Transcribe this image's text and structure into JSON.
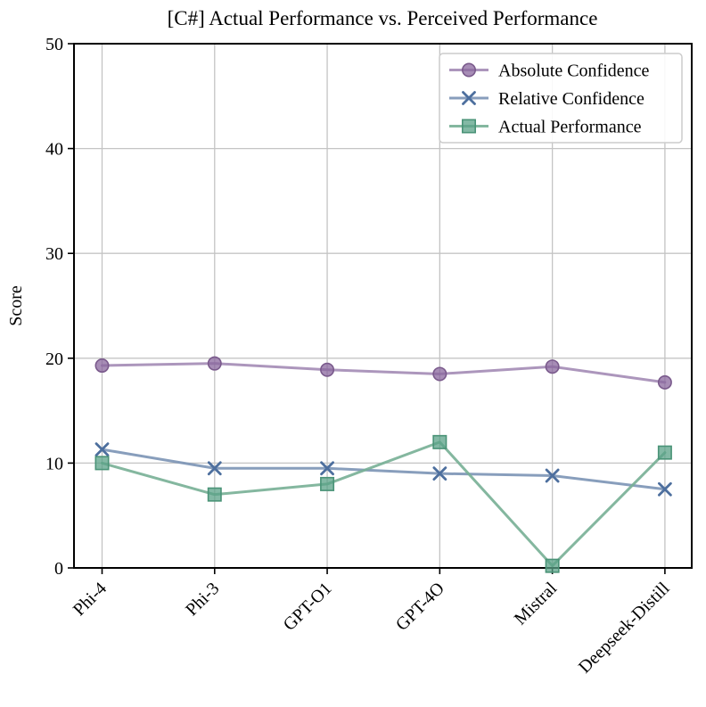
{
  "figure": {
    "title": "[C#] Actual Performance vs. Perceived Performance",
    "ylabel": "Score"
  },
  "chart_data": {
    "type": "line",
    "title": "[C#] Actual Performance vs. Perceived Performance",
    "xlabel": "",
    "ylabel": "Score",
    "categories": [
      "Phi-4",
      "Phi-3",
      "GPT-O1",
      "GPT-4O",
      "Mistral",
      "Deepseek-Distill"
    ],
    "series": [
      {
        "name": "Absolute Confidence",
        "marker": "circle",
        "line_color": "#a38bb5",
        "marker_color": "#8a679d",
        "marker_edge_color": "#7a5a8c",
        "values": [
          19.3,
          19.5,
          18.9,
          18.5,
          19.2,
          17.7
        ]
      },
      {
        "name": "Relative Confidence",
        "marker": "x",
        "line_color": "#7b94b5",
        "marker_color": "#4d6f9e",
        "marker_edge_color": "#4d6f9e",
        "values": [
          11.3,
          9.5,
          9.5,
          9.0,
          8.8,
          7.5
        ]
      },
      {
        "name": "Actual Performance",
        "marker": "square",
        "line_color": "#77af95",
        "marker_color": "#5aa287",
        "marker_edge_color": "#4a9377",
        "values": [
          10.0,
          7.0,
          8.0,
          12.0,
          0.2,
          11.0
        ]
      }
    ],
    "yticks": [
      0,
      10,
      20,
      30,
      40,
      50
    ],
    "ylim": [
      0,
      50
    ],
    "grid": true,
    "grid_color": "#c4c4c4",
    "legend_position": "upper right",
    "legend_border_color": "#cccccc"
  }
}
